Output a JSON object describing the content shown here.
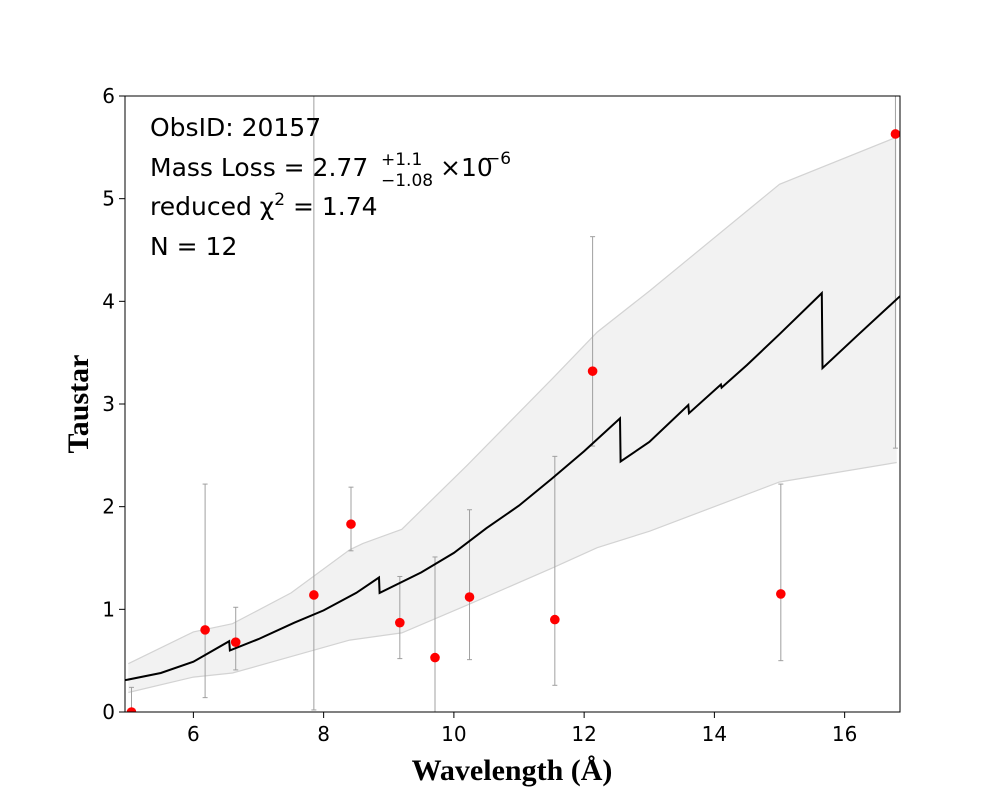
{
  "chart_data": {
    "type": "scatter",
    "title": "",
    "xlabel": "Wavelength (Å)",
    "ylabel": "Taustar",
    "xlim": [
      4.95,
      16.85
    ],
    "ylim": [
      0,
      6
    ],
    "xticks": [
      6,
      8,
      10,
      12,
      14,
      16
    ],
    "yticks": [
      0,
      1,
      2,
      3,
      4,
      5,
      6
    ],
    "grid": false,
    "annotations": {
      "obsid": "ObsID: 20157",
      "mass_loss_prefix": "Mass Loss = 2.77",
      "mass_loss_upper": "+1.1",
      "mass_loss_lower": "−1.08",
      "mass_loss_suffix": "×10",
      "mass_loss_exponent": "−6",
      "chi2_prefix": "reduced χ",
      "chi2_exponent": "2",
      "chi2_suffix": " = 1.74",
      "n": "N = 12"
    },
    "colors": {
      "points": "#ff0000",
      "model": "#000000",
      "band_fill": "#f2f2f2",
      "band_edge": "#d3d3d3",
      "errorbar": "#a0a0a0"
    },
    "points": [
      {
        "x": 5.05,
        "y": 0.0,
        "ylow": 0.0,
        "yhigh": 0.24
      },
      {
        "x": 6.18,
        "y": 0.8,
        "ylow": 0.14,
        "yhigh": 2.22
      },
      {
        "x": 6.65,
        "y": 0.68,
        "ylow": 0.41,
        "yhigh": 1.02
      },
      {
        "x": 7.85,
        "y": 1.14,
        "ylow": 0.02,
        "yhigh": 6.0
      },
      {
        "x": 8.42,
        "y": 1.83,
        "ylow": 1.57,
        "yhigh": 2.19
      },
      {
        "x": 9.17,
        "y": 0.87,
        "ylow": 0.52,
        "yhigh": 1.32
      },
      {
        "x": 9.71,
        "y": 0.53,
        "ylow": 0.0,
        "yhigh": 1.51
      },
      {
        "x": 10.24,
        "y": 1.12,
        "ylow": 0.51,
        "yhigh": 1.97
      },
      {
        "x": 11.55,
        "y": 0.9,
        "ylow": 0.26,
        "yhigh": 2.49
      },
      {
        "x": 12.13,
        "y": 3.32,
        "ylow": 2.59,
        "yhigh": 4.63
      },
      {
        "x": 15.02,
        "y": 1.15,
        "ylow": 0.5,
        "yhigh": 2.22
      },
      {
        "x": 16.78,
        "y": 5.63,
        "ylow": 2.57,
        "yhigh": 6.0
      }
    ],
    "model_line": [
      {
        "x": 4.95,
        "y": 0.31
      },
      {
        "x": 5.5,
        "y": 0.38
      },
      {
        "x": 6.0,
        "y": 0.49
      },
      {
        "x": 6.55,
        "y": 0.69
      },
      {
        "x": 6.56,
        "y": 0.6
      },
      {
        "x": 7.0,
        "y": 0.71
      },
      {
        "x": 7.55,
        "y": 0.87
      },
      {
        "x": 8.0,
        "y": 0.99
      },
      {
        "x": 8.5,
        "y": 1.16
      },
      {
        "x": 8.85,
        "y": 1.31
      },
      {
        "x": 8.86,
        "y": 1.16
      },
      {
        "x": 9.5,
        "y": 1.36
      },
      {
        "x": 10.0,
        "y": 1.55
      },
      {
        "x": 10.5,
        "y": 1.79
      },
      {
        "x": 11.0,
        "y": 2.01
      },
      {
        "x": 11.5,
        "y": 2.27
      },
      {
        "x": 12.0,
        "y": 2.54
      },
      {
        "x": 12.55,
        "y": 2.86
      },
      {
        "x": 12.56,
        "y": 2.44
      },
      {
        "x": 13.0,
        "y": 2.63
      },
      {
        "x": 13.6,
        "y": 2.99
      },
      {
        "x": 13.61,
        "y": 2.91
      },
      {
        "x": 14.1,
        "y": 3.19
      },
      {
        "x": 14.11,
        "y": 3.16
      },
      {
        "x": 14.5,
        "y": 3.38
      },
      {
        "x": 15.0,
        "y": 3.68
      },
      {
        "x": 15.65,
        "y": 4.08
      },
      {
        "x": 15.66,
        "y": 3.35
      },
      {
        "x": 16.2,
        "y": 3.67
      },
      {
        "x": 16.85,
        "y": 4.05
      }
    ],
    "band_upper": [
      {
        "x": 5.0,
        "y": 0.47
      },
      {
        "x": 6.0,
        "y": 0.78
      },
      {
        "x": 6.6,
        "y": 0.86
      },
      {
        "x": 7.5,
        "y": 1.16
      },
      {
        "x": 8.4,
        "y": 1.58
      },
      {
        "x": 8.6,
        "y": 1.64
      },
      {
        "x": 9.2,
        "y": 1.78
      },
      {
        "x": 10.2,
        "y": 2.4
      },
      {
        "x": 11.5,
        "y": 3.24
      },
      {
        "x": 12.2,
        "y": 3.7
      },
      {
        "x": 13.0,
        "y": 4.1
      },
      {
        "x": 15.0,
        "y": 5.14
      },
      {
        "x": 16.8,
        "y": 5.6
      }
    ],
    "band_lower": [
      {
        "x": 5.0,
        "y": 0.19
      },
      {
        "x": 6.0,
        "y": 0.34
      },
      {
        "x": 6.6,
        "y": 0.38
      },
      {
        "x": 7.5,
        "y": 0.54
      },
      {
        "x": 8.4,
        "y": 0.7
      },
      {
        "x": 9.2,
        "y": 0.77
      },
      {
        "x": 10.2,
        "y": 1.04
      },
      {
        "x": 11.5,
        "y": 1.4
      },
      {
        "x": 12.2,
        "y": 1.6
      },
      {
        "x": 13.0,
        "y": 1.76
      },
      {
        "x": 15.0,
        "y": 2.24
      },
      {
        "x": 16.8,
        "y": 2.43
      }
    ]
  }
}
